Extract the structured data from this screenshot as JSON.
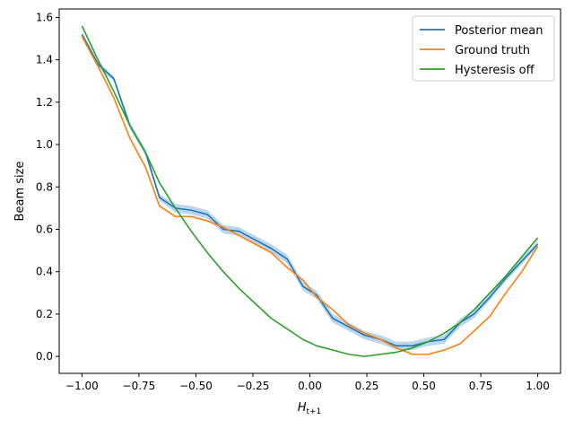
{
  "chart_data": {
    "type": "line",
    "xlabel_main": "H",
    "xlabel_sub": "t+1",
    "ylabel": "Beam size",
    "xlim": [
      -1.1,
      1.1
    ],
    "ylim": [
      -0.08,
      1.64
    ],
    "xticks": [
      -1.0,
      -0.75,
      -0.5,
      -0.25,
      0.0,
      0.25,
      0.5,
      0.75,
      1.0
    ],
    "xtick_labels": [
      "−1.00",
      "−0.75",
      "−0.50",
      "−0.25",
      "0.00",
      "0.25",
      "0.50",
      "0.75",
      "1.00"
    ],
    "yticks": [
      0.0,
      0.2,
      0.4,
      0.6,
      0.8,
      1.0,
      1.2,
      1.4,
      1.6
    ],
    "ytick_labels": [
      "0.0",
      "0.2",
      "0.4",
      "0.6",
      "0.8",
      "1.0",
      "1.2",
      "1.4",
      "1.6"
    ],
    "legend_position": "top-right",
    "series": [
      {
        "name": "Posterior mean",
        "color": "#1f77b4",
        "band_color": "#a6c8e8",
        "x": [
          -1.0,
          -0.93,
          -0.86,
          -0.79,
          -0.72,
          -0.66,
          -0.59,
          -0.52,
          -0.45,
          -0.38,
          -0.31,
          -0.24,
          -0.17,
          -0.1,
          -0.03,
          0.03,
          0.1,
          0.17,
          0.24,
          0.31,
          0.38,
          0.45,
          0.52,
          0.59,
          0.66,
          0.72,
          0.79,
          0.86,
          0.93,
          1.0
        ],
        "values": [
          1.52,
          1.38,
          1.31,
          1.09,
          0.96,
          0.75,
          0.7,
          0.69,
          0.67,
          0.6,
          0.59,
          0.55,
          0.51,
          0.46,
          0.33,
          0.29,
          0.18,
          0.14,
          0.1,
          0.08,
          0.05,
          0.05,
          0.07,
          0.08,
          0.16,
          0.2,
          0.28,
          0.37,
          0.45,
          0.53
        ],
        "band": [
          0.01,
          0.015,
          0.012,
          0.015,
          0.015,
          0.015,
          0.02,
          0.02,
          0.02,
          0.02,
          0.02,
          0.02,
          0.02,
          0.02,
          0.02,
          0.02,
          0.02,
          0.02,
          0.02,
          0.02,
          0.02,
          0.02,
          0.02,
          0.02,
          0.02,
          0.02,
          0.015,
          0.015,
          0.015,
          0.015
        ]
      },
      {
        "name": "Ground truth",
        "color": "#ff7f0e",
        "x": [
          -1.0,
          -0.93,
          -0.86,
          -0.79,
          -0.72,
          -0.66,
          -0.59,
          -0.52,
          -0.45,
          -0.38,
          -0.31,
          -0.24,
          -0.17,
          -0.1,
          -0.03,
          0.03,
          0.1,
          0.17,
          0.24,
          0.31,
          0.38,
          0.45,
          0.52,
          0.59,
          0.66,
          0.72,
          0.79,
          0.86,
          0.93,
          1.0
        ],
        "values": [
          1.51,
          1.37,
          1.22,
          1.03,
          0.89,
          0.71,
          0.66,
          0.66,
          0.64,
          0.61,
          0.57,
          0.53,
          0.49,
          0.42,
          0.36,
          0.28,
          0.22,
          0.15,
          0.11,
          0.08,
          0.04,
          0.01,
          0.01,
          0.03,
          0.06,
          0.12,
          0.19,
          0.3,
          0.4,
          0.52
        ]
      },
      {
        "name": "Hysteresis off",
        "color": "#2ca02c",
        "x": [
          -1.0,
          -0.93,
          -0.86,
          -0.79,
          -0.72,
          -0.66,
          -0.59,
          -0.52,
          -0.45,
          -0.38,
          -0.31,
          -0.24,
          -0.17,
          -0.1,
          -0.03,
          0.03,
          0.1,
          0.17,
          0.24,
          0.31,
          0.38,
          0.45,
          0.52,
          0.59,
          0.66,
          0.72,
          0.79,
          0.86,
          0.93,
          1.0
        ],
        "values": [
          1.56,
          1.4,
          1.25,
          1.09,
          0.96,
          0.82,
          0.7,
          0.59,
          0.49,
          0.4,
          0.32,
          0.25,
          0.18,
          0.13,
          0.08,
          0.05,
          0.03,
          0.01,
          0.0,
          0.01,
          0.02,
          0.04,
          0.07,
          0.11,
          0.16,
          0.22,
          0.3,
          0.38,
          0.47,
          0.56
        ]
      }
    ]
  }
}
